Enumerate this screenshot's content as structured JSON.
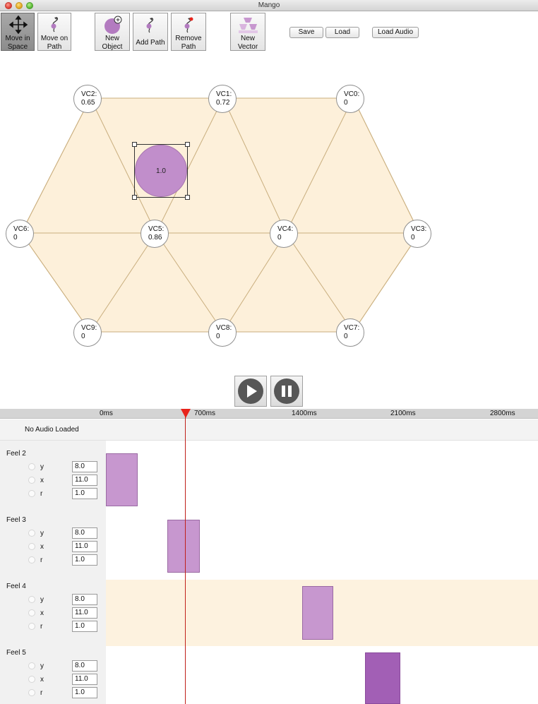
{
  "window": {
    "title": "Mango"
  },
  "toolbar": {
    "tools": [
      {
        "label": "Move in\nSpace",
        "icon": "move-arrows-icon",
        "active": true
      },
      {
        "label": "Move on\nPath",
        "icon": "path-node-icon",
        "active": false
      },
      {
        "label": "New\nObject",
        "icon": "new-object-icon",
        "active": false
      },
      {
        "label": "Add Path",
        "icon": "add-path-icon",
        "active": false
      },
      {
        "label": "Remove\nPath",
        "icon": "remove-path-icon",
        "active": false
      },
      {
        "label": "New\nVector",
        "icon": "new-vector-icon",
        "active": false
      }
    ],
    "save_label": "Save",
    "load_label": "Load",
    "load_audio_label": "Load Audio"
  },
  "vectors": [
    {
      "name": "VC2:",
      "value": "0.65"
    },
    {
      "name": "VC1:",
      "value": "0.72"
    },
    {
      "name": "VC0:",
      "value": "0"
    },
    {
      "name": "VC6:",
      "value": "0"
    },
    {
      "name": "VC5:",
      "value": "0.86"
    },
    {
      "name": "VC4:",
      "value": "0"
    },
    {
      "name": "VC3:",
      "value": "0"
    },
    {
      "name": "VC9:",
      "value": "0"
    },
    {
      "name": "VC8:",
      "value": "0"
    },
    {
      "name": "VC7:",
      "value": "0"
    }
  ],
  "object": {
    "value": "1.0",
    "color": "#c18ecb"
  },
  "timeline": {
    "ticks": [
      "0ms",
      "700ms",
      "1400ms",
      "2100ms",
      "2800ms"
    ],
    "audio_status": "No Audio Loaded",
    "playhead_color": "#e8231b",
    "tracks": [
      {
        "name": "Feel 2",
        "params": [
          {
            "label": "y",
            "value": "8.0"
          },
          {
            "label": "x",
            "value": "11.0"
          },
          {
            "label": "r",
            "value": "1.0"
          }
        ],
        "block_color": "#c797cf"
      },
      {
        "name": "Feel 3",
        "params": [
          {
            "label": "y",
            "value": "8.0"
          },
          {
            "label": "x",
            "value": "11.0"
          },
          {
            "label": "r",
            "value": "1.0"
          }
        ],
        "block_color": "#c797cf"
      },
      {
        "name": "Feel 4",
        "params": [
          {
            "label": "y",
            "value": "8.0"
          },
          {
            "label": "x",
            "value": "11.0"
          },
          {
            "label": "r",
            "value": "1.0"
          }
        ],
        "block_color": "#c797cf"
      },
      {
        "name": "Feel 5",
        "params": [
          {
            "label": "y",
            "value": "8.0"
          },
          {
            "label": "x",
            "value": "11.0"
          },
          {
            "label": "r",
            "value": "1.0"
          }
        ],
        "block_color": "#a25fb5"
      }
    ]
  }
}
